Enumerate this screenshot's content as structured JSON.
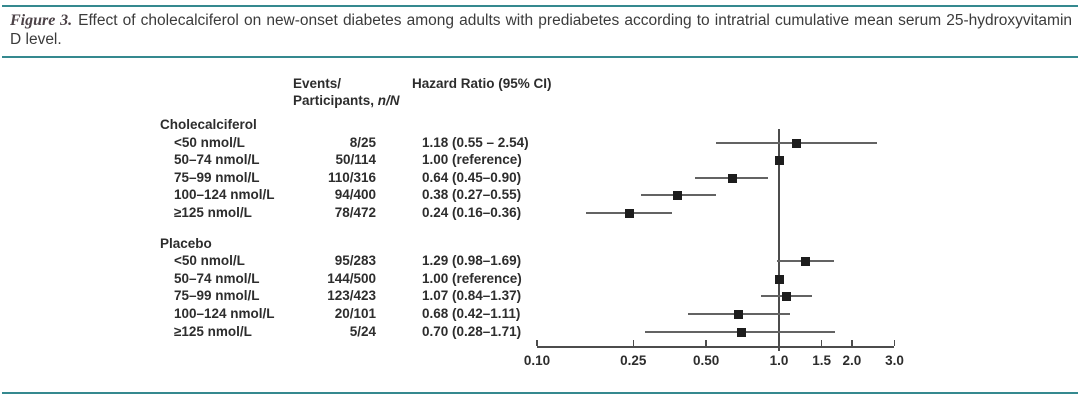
{
  "caption": {
    "label": "Figure 3.",
    "text": "Effect of cholecalciferol on new-onset diabetes among adults with prediabetes according to intratrial cumulative mean serum 25-hydroxyvitamin D level."
  },
  "table": {
    "events_header_line1": "Events/",
    "events_header_line2_prefix": "Participants, ",
    "events_header_line2_italic": "n/N",
    "hr_header": "Hazard Ratio (95% CI)"
  },
  "chart_data": {
    "type": "forest",
    "x_axis": {
      "scale": "log",
      "min": 0.1,
      "max": 3.0,
      "reference_line": 1.0,
      "tick_labels": [
        "0.10",
        "0.25",
        "0.50",
        "1.0",
        "1.5",
        "2.0",
        "3.0"
      ],
      "tick_values": [
        0.1,
        0.25,
        0.5,
        1.0,
        1.5,
        2.0,
        3.0
      ]
    },
    "groups": [
      {
        "name": "Cholecalciferol",
        "rows": [
          {
            "label": "<50 nmol/L",
            "events": "8/25",
            "hr_text": "1.18 (0.55 – 2.54)",
            "hr": 1.18,
            "lo": 0.55,
            "hi": 2.54,
            "reference": false
          },
          {
            "label": "50–74 nmol/L",
            "events": "50/114",
            "hr_text": "1.00 (reference)",
            "hr": 1.0,
            "lo": null,
            "hi": null,
            "reference": true
          },
          {
            "label": "75–99 nmol/L",
            "events": "110/316",
            "hr_text": "0.64 (0.45–0.90)",
            "hr": 0.64,
            "lo": 0.45,
            "hi": 0.9,
            "reference": false
          },
          {
            "label": "100–124 nmol/L",
            "events": "94/400",
            "hr_text": "0.38 (0.27–0.55)",
            "hr": 0.38,
            "lo": 0.27,
            "hi": 0.55,
            "reference": false
          },
          {
            "label": "≥125 nmol/L",
            "events": "78/472",
            "hr_text": "0.24 (0.16–0.36)",
            "hr": 0.24,
            "lo": 0.16,
            "hi": 0.36,
            "reference": false
          }
        ]
      },
      {
        "name": "Placebo",
        "rows": [
          {
            "label": "<50 nmol/L",
            "events": "95/283",
            "hr_text": "1.29 (0.98–1.69)",
            "hr": 1.29,
            "lo": 0.98,
            "hi": 1.69,
            "reference": false
          },
          {
            "label": "50–74 nmol/L",
            "events": "144/500",
            "hr_text": "1.00 (reference)",
            "hr": 1.0,
            "lo": null,
            "hi": null,
            "reference": true
          },
          {
            "label": "75–99 nmol/L",
            "events": "123/423",
            "hr_text": "1.07 (0.84–1.37)",
            "hr": 1.07,
            "lo": 0.84,
            "hi": 1.37,
            "reference": false
          },
          {
            "label": "100–124 nmol/L",
            "events": "20/101",
            "hr_text": "0.68 (0.42–1.11)",
            "hr": 0.68,
            "lo": 0.42,
            "hi": 1.11,
            "reference": false
          },
          {
            "label": "≥125 nmol/L",
            "events": "5/24",
            "hr_text": "0.70 (0.28–1.71)",
            "hr": 0.7,
            "lo": 0.28,
            "hi": 1.71,
            "reference": false
          }
        ]
      }
    ]
  },
  "colors": {
    "accent_rule": "#35898f",
    "figure_label": "#4c4247",
    "text": "#2d2d2d",
    "marker": "#1d1d1d",
    "ci_line": "#636363",
    "axis": "#4c4c4c"
  }
}
